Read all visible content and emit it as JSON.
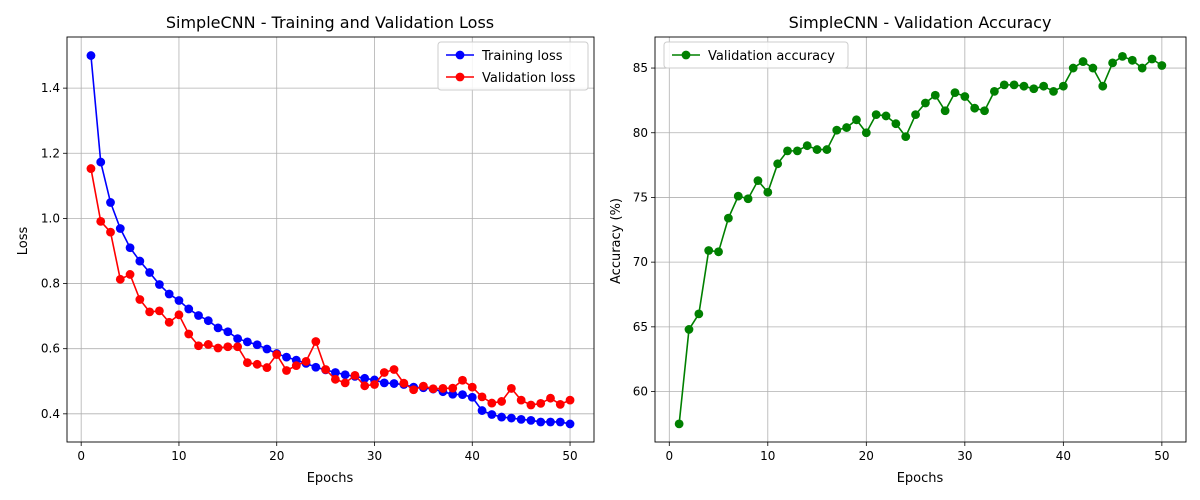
{
  "colors": {
    "grid": "#b0b0b0",
    "frame": "#000000",
    "legend_border": "#cccccc"
  },
  "chart_data": [
    {
      "type": "line",
      "title": "SimpleCNN - Training and Validation Loss",
      "xlabel": "Epochs",
      "ylabel": "Loss",
      "xlim": [
        -1.45,
        52.45
      ],
      "ylim": [
        0.3135,
        1.557
      ],
      "xticks": [
        0,
        10,
        20,
        30,
        40,
        50
      ],
      "yticks": [
        0.4,
        0.6,
        0.8,
        1.0,
        1.2,
        1.4
      ],
      "ytick_labels": [
        "0.4",
        "0.6",
        "0.8",
        "1.0",
        "1.2",
        "1.4"
      ],
      "grid": true,
      "legend_position": "upper right",
      "x": [
        1,
        2,
        3,
        4,
        5,
        6,
        7,
        8,
        9,
        10,
        11,
        12,
        13,
        14,
        15,
        16,
        17,
        18,
        19,
        20,
        21,
        22,
        23,
        24,
        25,
        26,
        27,
        28,
        29,
        30,
        31,
        32,
        33,
        34,
        35,
        36,
        37,
        38,
        39,
        40,
        41,
        42,
        43,
        44,
        45,
        46,
        47,
        48,
        49,
        50
      ],
      "series": [
        {
          "name": "Training loss",
          "color": "#0000ff",
          "marker": "circle",
          "values": [
            1.5,
            1.173,
            1.049,
            0.969,
            0.91,
            0.869,
            0.834,
            0.797,
            0.768,
            0.748,
            0.722,
            0.702,
            0.686,
            0.664,
            0.652,
            0.631,
            0.621,
            0.612,
            0.599,
            0.585,
            0.574,
            0.565,
            0.555,
            0.543,
            0.535,
            0.527,
            0.52,
            0.515,
            0.509,
            0.504,
            0.495,
            0.493,
            0.49,
            0.482,
            0.48,
            0.476,
            0.468,
            0.46,
            0.459,
            0.451,
            0.41,
            0.398,
            0.39,
            0.387,
            0.383,
            0.38,
            0.375,
            0.375,
            0.375,
            0.369
          ]
        },
        {
          "name": "Validation loss",
          "color": "#ff0000",
          "marker": "circle",
          "values": [
            1.153,
            0.991,
            0.958,
            0.813,
            0.828,
            0.751,
            0.713,
            0.716,
            0.681,
            0.704,
            0.645,
            0.609,
            0.613,
            0.602,
            0.606,
            0.606,
            0.557,
            0.552,
            0.542,
            0.582,
            0.533,
            0.548,
            0.561,
            0.622,
            0.536,
            0.506,
            0.495,
            0.518,
            0.486,
            0.49,
            0.527,
            0.536,
            0.494,
            0.474,
            0.485,
            0.477,
            0.478,
            0.479,
            0.503,
            0.482,
            0.452,
            0.433,
            0.438,
            0.478,
            0.442,
            0.427,
            0.432,
            0.448,
            0.429,
            0.442
          ]
        }
      ]
    },
    {
      "type": "line",
      "title": "SimpleCNN - Validation Accuracy",
      "xlabel": "Epochs",
      "ylabel": "Accuracy (%)",
      "xlim": [
        -1.45,
        52.45
      ],
      "ylim": [
        56.1,
        87.4
      ],
      "xticks": [
        0,
        10,
        20,
        30,
        40,
        50
      ],
      "yticks": [
        60,
        65,
        70,
        75,
        80,
        85
      ],
      "ytick_labels": [
        "60",
        "65",
        "70",
        "75",
        "80",
        "85"
      ],
      "grid": true,
      "legend_position": "upper left",
      "x": [
        1,
        2,
        3,
        4,
        5,
        6,
        7,
        8,
        9,
        10,
        11,
        12,
        13,
        14,
        15,
        16,
        17,
        18,
        19,
        20,
        21,
        22,
        23,
        24,
        25,
        26,
        27,
        28,
        29,
        30,
        31,
        32,
        33,
        34,
        35,
        36,
        37,
        38,
        39,
        40,
        41,
        42,
        43,
        44,
        45,
        46,
        47,
        48,
        49,
        50
      ],
      "series": [
        {
          "name": "Validation accuracy",
          "color": "#008000",
          "marker": "circle",
          "values": [
            57.5,
            64.8,
            66.0,
            70.9,
            70.8,
            73.4,
            75.1,
            74.9,
            76.3,
            75.4,
            77.6,
            78.6,
            78.6,
            79.0,
            78.7,
            78.7,
            80.2,
            80.4,
            81.0,
            80.0,
            81.4,
            81.3,
            80.7,
            79.7,
            81.4,
            82.3,
            82.9,
            81.7,
            83.1,
            82.8,
            81.9,
            81.7,
            83.2,
            83.7,
            83.7,
            83.6,
            83.4,
            83.6,
            83.2,
            83.6,
            85.0,
            85.5,
            85.0,
            83.6,
            85.4,
            85.9,
            85.6,
            85.0,
            85.7,
            85.2
          ]
        }
      ]
    }
  ]
}
